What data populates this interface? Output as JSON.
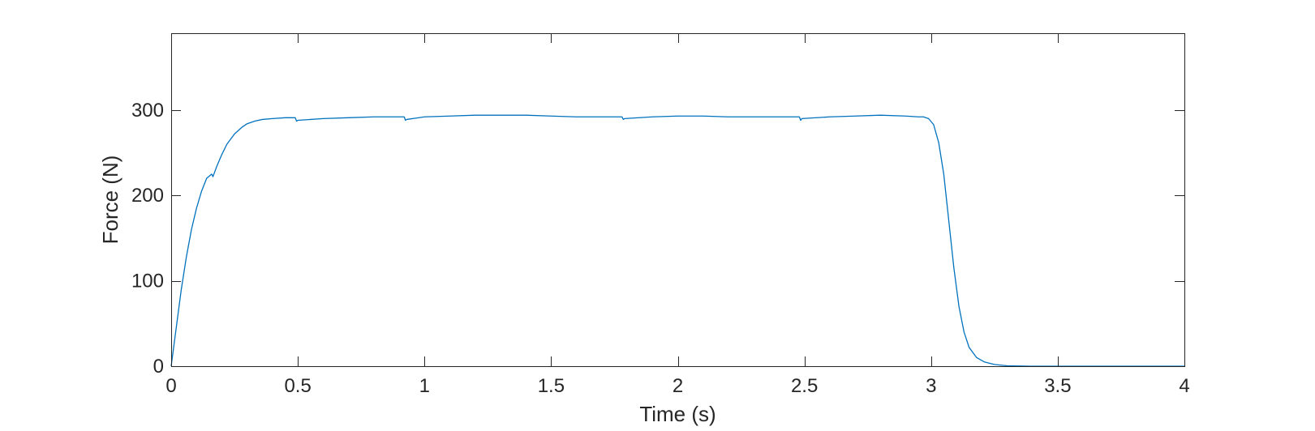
{
  "chart_data": {
    "type": "line",
    "title": "",
    "xlabel": "Time (s)",
    "ylabel": "Force (N)",
    "xlim": [
      0,
      4
    ],
    "ylim": [
      0,
      390
    ],
    "xticks": [
      0,
      0.5,
      1,
      1.5,
      2,
      2.5,
      3,
      3.5,
      4
    ],
    "xtick_labels": [
      "0",
      "0.5",
      "1",
      "1.5",
      "2",
      "2.5",
      "3",
      "3.5",
      "4"
    ],
    "yticks": [
      0,
      100,
      200,
      300
    ],
    "ytick_labels": [
      "0",
      "100",
      "200",
      "300"
    ],
    "grid": false,
    "box": true,
    "series": [
      {
        "color": "#0072BD",
        "x": [
          0,
          0.02,
          0.04,
          0.06,
          0.08,
          0.1,
          0.12,
          0.14,
          0.16,
          0.165,
          0.17,
          0.18,
          0.2,
          0.22,
          0.25,
          0.28,
          0.3,
          0.33,
          0.36,
          0.4,
          0.45,
          0.49,
          0.495,
          0.5,
          0.6,
          0.7,
          0.8,
          0.92,
          0.925,
          0.93,
          1.0,
          1.1,
          1.2,
          1.3,
          1.4,
          1.5,
          1.6,
          1.7,
          1.78,
          1.785,
          1.79,
          1.9,
          2.0,
          2.1,
          2.2,
          2.3,
          2.4,
          2.48,
          2.485,
          2.49,
          2.6,
          2.7,
          2.8,
          2.9,
          2.95,
          2.97,
          2.99,
          3.01,
          3.03,
          3.05,
          3.07,
          3.09,
          3.11,
          3.13,
          3.15,
          3.18,
          3.21,
          3.25,
          3.3,
          3.35,
          3.4,
          3.5,
          3.6,
          3.8,
          4.0
        ],
        "y": [
          0,
          45,
          90,
          128,
          160,
          185,
          205,
          220,
          225,
          222,
          226,
          234,
          248,
          260,
          272,
          280,
          284,
          287,
          289,
          290,
          291,
          291,
          287,
          288,
          290,
          291,
          292,
          292,
          288,
          289,
          292,
          293,
          294,
          294,
          294,
          293,
          292,
          292,
          292,
          289,
          290,
          292,
          293,
          293,
          292,
          292,
          292,
          292,
          288,
          290,
          292,
          293,
          294,
          293,
          292,
          292,
          290,
          283,
          262,
          225,
          170,
          115,
          70,
          40,
          22,
          10,
          5,
          2,
          0.5,
          0.2,
          0,
          0,
          0,
          0,
          0
        ]
      }
    ]
  }
}
